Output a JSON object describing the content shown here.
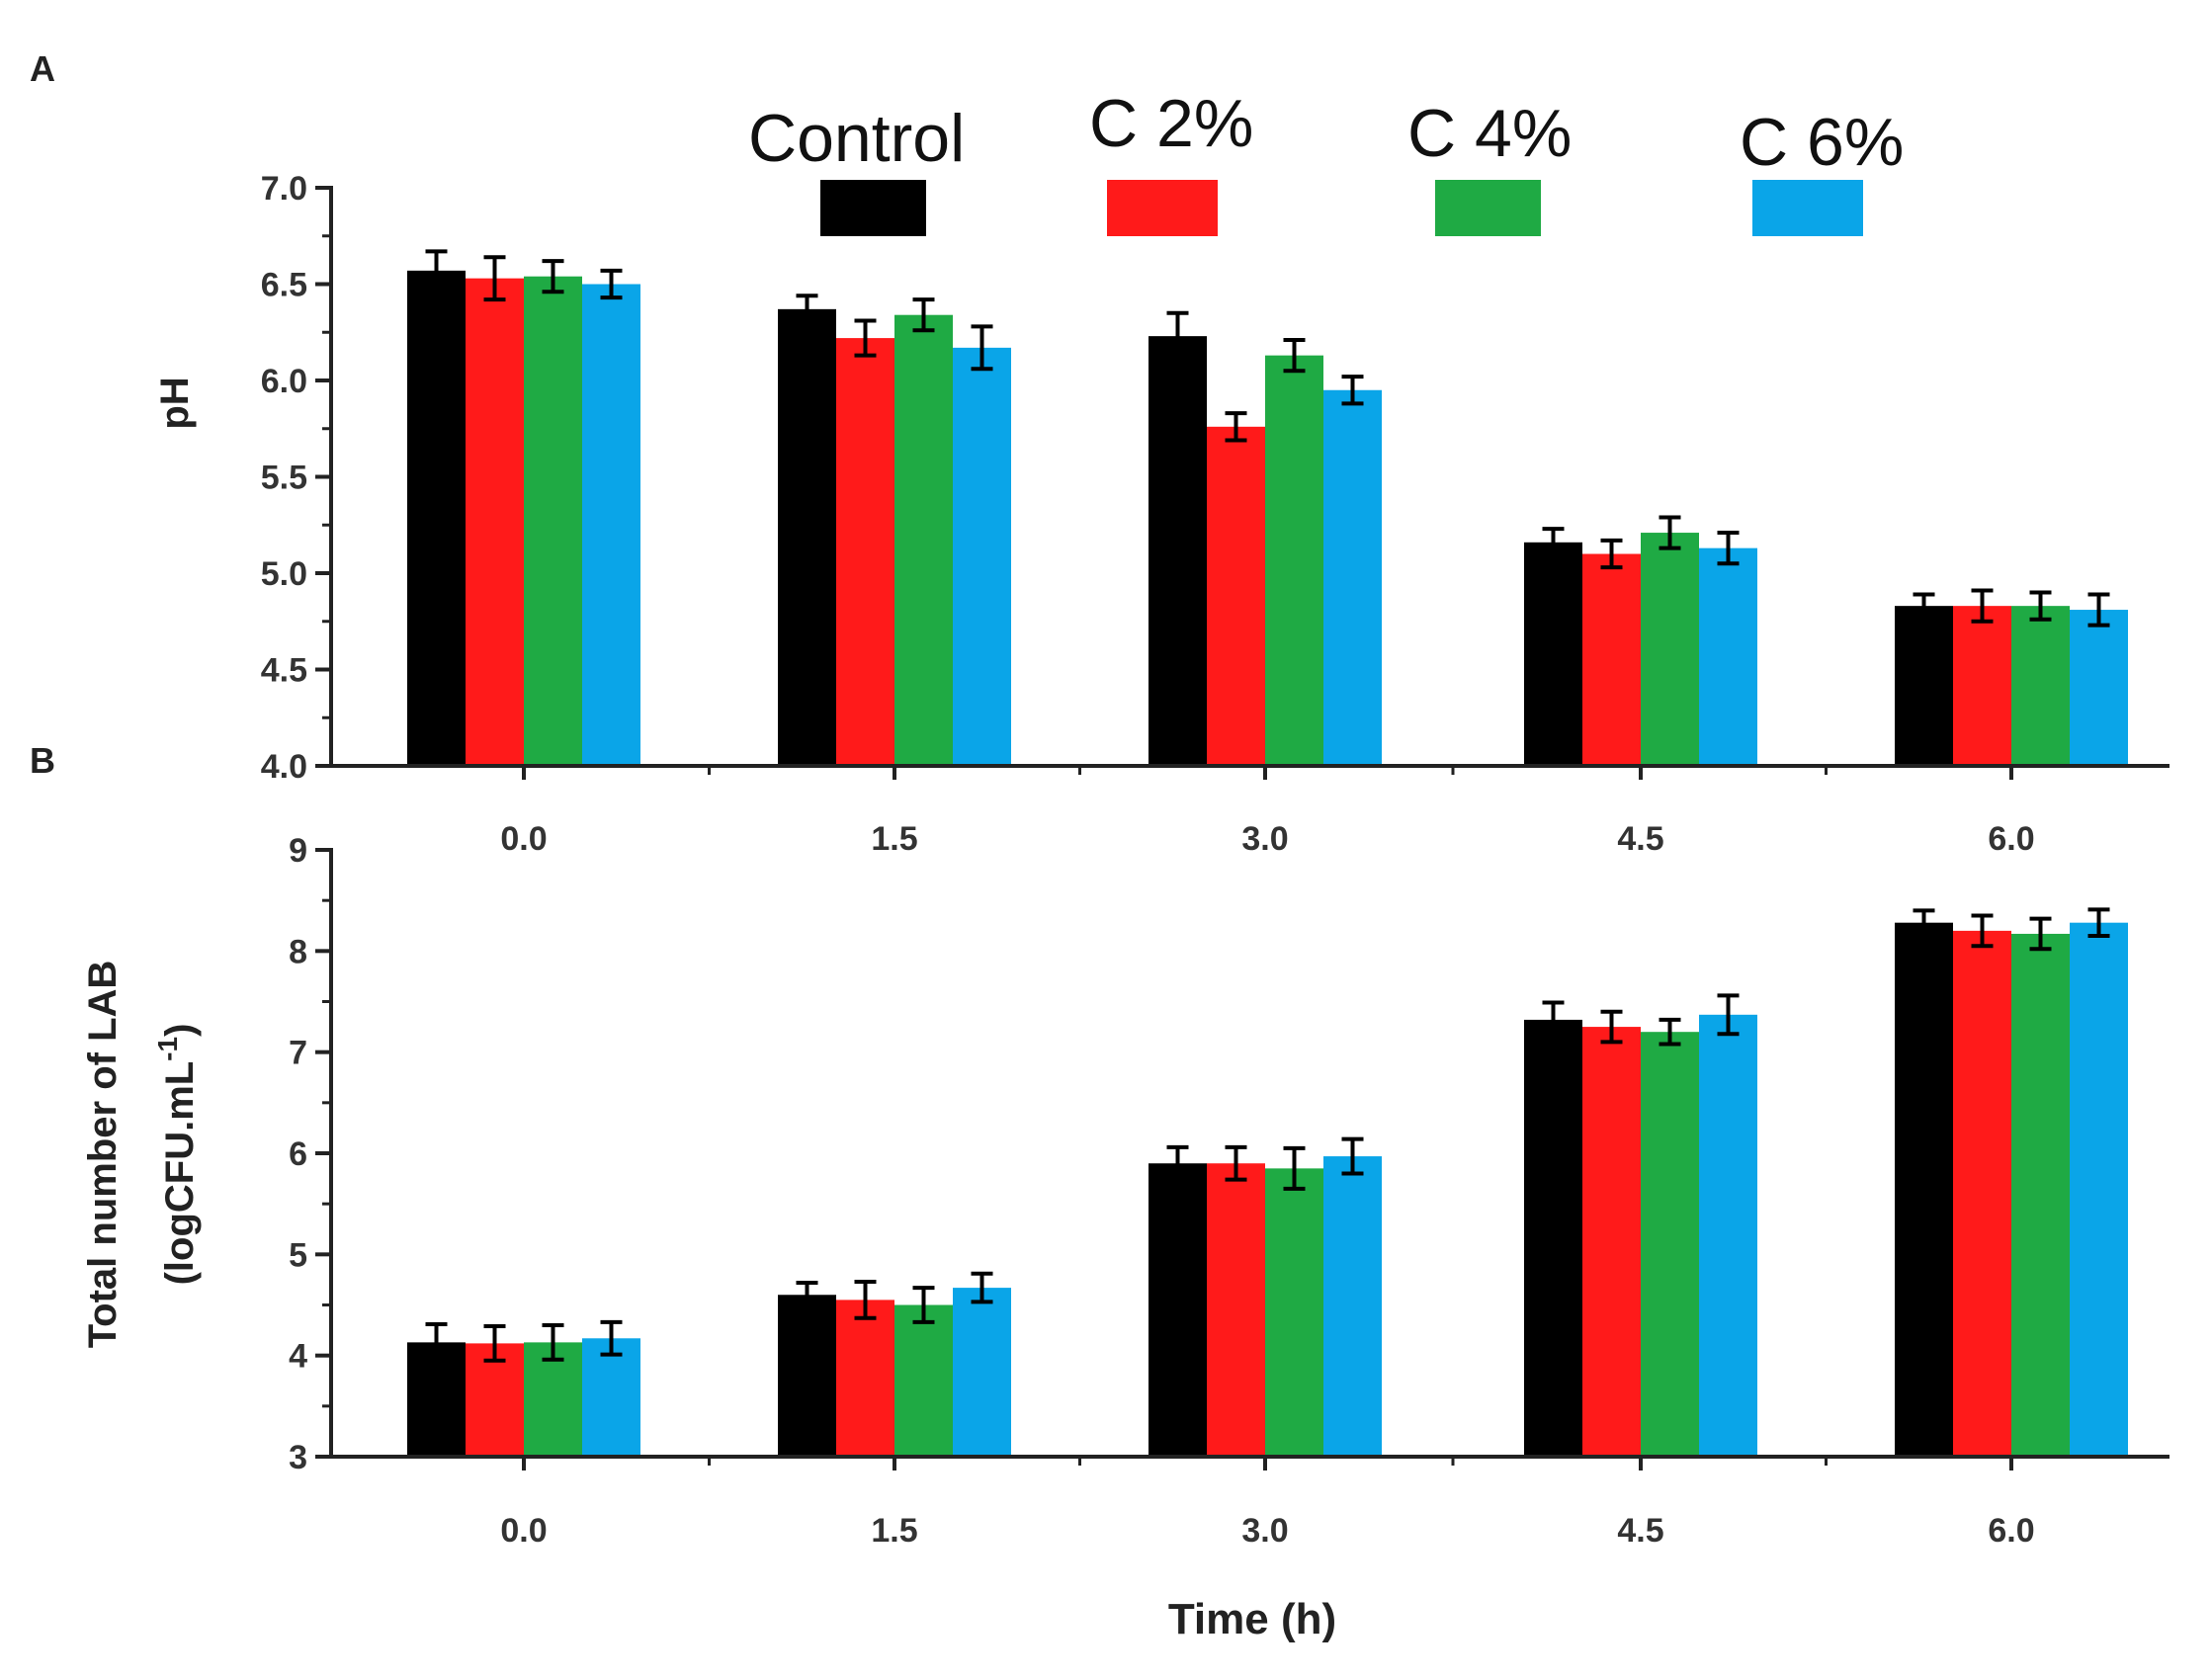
{
  "legend": [
    {
      "label": "Control",
      "color": "#000000"
    },
    {
      "label": "C 2%",
      "color": "#ff1a1a"
    },
    {
      "label": "C 4%",
      "color": "#1faa44"
    },
    {
      "label": "C 6%",
      "color": "#0aa5e8"
    }
  ],
  "chart_data": [
    {
      "panel": "A",
      "type": "bar",
      "ylabel": "pH",
      "ylim": [
        4.0,
        7.0
      ],
      "yticks": [
        "4.0",
        "4.5",
        "5.0",
        "5.5",
        "6.0",
        "6.5",
        "7.0"
      ],
      "categories": [
        "0.0",
        "1.5",
        "3.0",
        "4.5",
        "6.0"
      ],
      "series": [
        {
          "name": "Control",
          "values": [
            6.57,
            6.37,
            6.23,
            5.16,
            4.83
          ],
          "errors": [
            0.1,
            0.07,
            0.12,
            0.07,
            0.06
          ]
        },
        {
          "name": "C 2%",
          "values": [
            6.53,
            6.22,
            5.76,
            5.1,
            4.83
          ],
          "errors": [
            0.11,
            0.09,
            0.07,
            0.07,
            0.08
          ]
        },
        {
          "name": "C 4%",
          "values": [
            6.54,
            6.34,
            6.13,
            5.21,
            4.83
          ],
          "errors": [
            0.08,
            0.08,
            0.08,
            0.08,
            0.07
          ]
        },
        {
          "name": "C 6%",
          "values": [
            6.5,
            6.17,
            5.95,
            5.13,
            4.81
          ],
          "errors": [
            0.07,
            0.11,
            0.07,
            0.08,
            0.08
          ]
        }
      ]
    },
    {
      "panel": "B",
      "type": "bar",
      "ylabel_line1": "Total number of LAB",
      "ylabel_line2": "(logCFU.mL",
      "ylabel_sup": "-1",
      "ylabel_close": ")",
      "xlabel": "Time (h)",
      "ylim": [
        3,
        9
      ],
      "yticks": [
        "3",
        "4",
        "5",
        "6",
        "7",
        "8",
        "9"
      ],
      "categories": [
        "0.0",
        "1.5",
        "3.0",
        "4.5",
        "6.0"
      ],
      "series": [
        {
          "name": "Control",
          "values": [
            4.13,
            4.6,
            5.9,
            7.32,
            8.28
          ],
          "errors": [
            0.18,
            0.12,
            0.16,
            0.17,
            0.12
          ]
        },
        {
          "name": "C 2%",
          "values": [
            4.12,
            4.55,
            5.9,
            7.25,
            8.2
          ],
          "errors": [
            0.17,
            0.18,
            0.16,
            0.15,
            0.15
          ]
        },
        {
          "name": "C 4%",
          "values": [
            4.13,
            4.5,
            5.85,
            7.2,
            8.17
          ],
          "errors": [
            0.17,
            0.17,
            0.2,
            0.12,
            0.15
          ]
        },
        {
          "name": "C 6%",
          "values": [
            4.17,
            4.67,
            5.97,
            7.37,
            8.28
          ],
          "errors": [
            0.16,
            0.14,
            0.17,
            0.19,
            0.13
          ]
        }
      ]
    }
  ]
}
